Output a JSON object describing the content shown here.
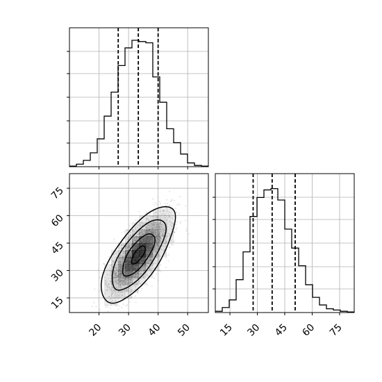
{
  "chart_data": [
    {
      "panel": "top-left",
      "type": "step-histogram",
      "x_variable": 1,
      "xlim": [
        10,
        57
      ],
      "grid": true,
      "xticks": [
        20,
        30,
        40,
        50
      ],
      "show_tick_labels": false,
      "bins": [
        [
          10.0,
          12.35
        ],
        [
          12.35,
          14.7
        ],
        [
          14.7,
          17.05
        ],
        [
          17.05,
          19.4
        ],
        [
          19.4,
          21.75
        ],
        [
          21.75,
          24.1
        ],
        [
          24.1,
          26.45
        ],
        [
          26.45,
          28.8
        ],
        [
          28.8,
          31.15
        ],
        [
          31.15,
          33.5
        ],
        [
          33.5,
          35.85
        ],
        [
          35.85,
          38.2
        ],
        [
          38.2,
          40.55
        ],
        [
          40.55,
          42.9
        ],
        [
          42.9,
          45.25
        ],
        [
          45.25,
          47.6
        ],
        [
          47.6,
          49.95
        ],
        [
          49.95,
          52.3
        ],
        [
          52.3,
          54.65
        ],
        [
          54.65,
          57.0
        ]
      ],
      "relative_counts": [
        0.005,
        0.02,
        0.05,
        0.11,
        0.22,
        0.4,
        0.59,
        0.8,
        0.94,
        1.0,
        0.99,
        0.98,
        0.71,
        0.51,
        0.3,
        0.19,
        0.1,
        0.03,
        0.01,
        0.005
      ],
      "quantile_lines": [
        26.5,
        33.3,
        40.0
      ]
    },
    {
      "panel": "bottom-left",
      "type": "2d-density",
      "x_variable": 1,
      "y_variable": 2,
      "xlim": [
        10,
        57
      ],
      "ylim": [
        7,
        83
      ],
      "xticks": [
        20,
        30,
        40,
        50
      ],
      "yticks": [
        15,
        30,
        45,
        60,
        75
      ],
      "grid": true,
      "density_peak": [
        31,
        36
      ],
      "contour_levels": 4
    },
    {
      "panel": "bottom-right",
      "type": "step-histogram",
      "x_variable": 2,
      "xlim": [
        7,
        83
      ],
      "grid": true,
      "xticks": [
        15,
        30,
        45,
        60,
        75
      ],
      "show_tick_labels": true,
      "bins": [
        [
          7.0,
          10.8
        ],
        [
          10.8,
          14.6
        ],
        [
          14.6,
          18.4
        ],
        [
          18.4,
          22.2
        ],
        [
          22.2,
          26.0
        ],
        [
          26.0,
          29.8
        ],
        [
          29.8,
          33.6
        ],
        [
          33.6,
          37.4
        ],
        [
          37.4,
          41.2
        ],
        [
          41.2,
          45.0
        ],
        [
          45.0,
          48.8
        ],
        [
          48.8,
          52.6
        ],
        [
          52.6,
          56.4
        ],
        [
          56.4,
          60.2
        ],
        [
          60.2,
          64.0
        ],
        [
          64.0,
          67.8
        ],
        [
          67.8,
          71.6
        ],
        [
          71.6,
          75.4
        ],
        [
          75.4,
          79.2
        ],
        [
          79.2,
          83.0
        ]
      ],
      "relative_counts": [
        0.01,
        0.04,
        0.1,
        0.26,
        0.48,
        0.76,
        0.91,
        0.97,
        0.98,
        0.89,
        0.66,
        0.51,
        0.37,
        0.22,
        0.12,
        0.06,
        0.03,
        0.02,
        0.01,
        0.005
      ],
      "quantile_lines": [
        27.7,
        38.1,
        50.7
      ]
    }
  ],
  "style": {
    "line_color": "#000000",
    "grid_color": "#b0b0b0",
    "scatter_color": "#9a9a9a",
    "density_fill_color": "#000000"
  }
}
